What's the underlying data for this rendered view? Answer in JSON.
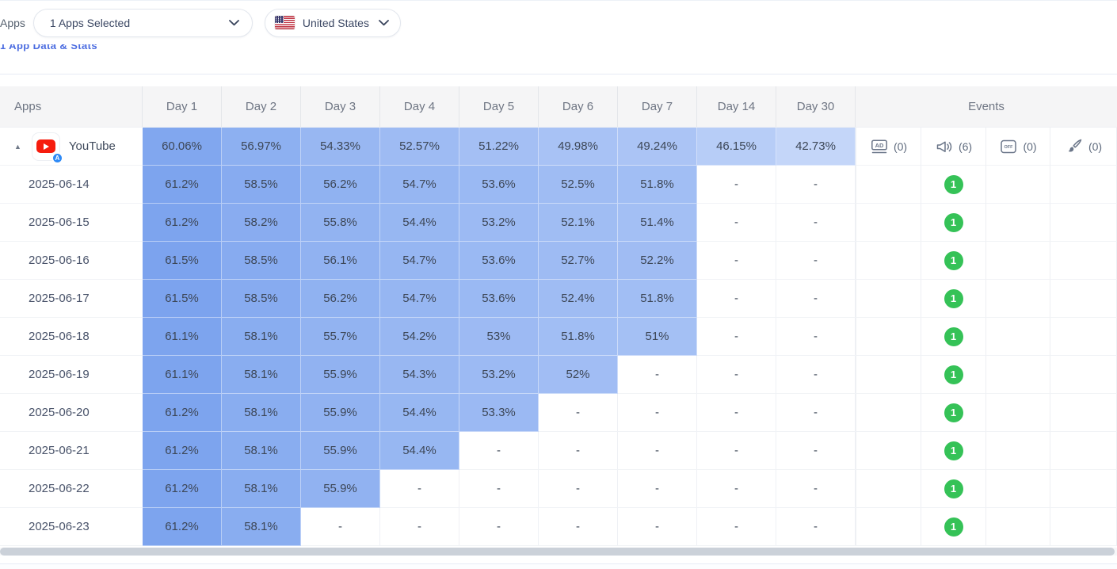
{
  "topbar": {
    "apps_label": "Apps",
    "apps_selected": "1 Apps Selected",
    "country": "United States",
    "flag": "us-flag"
  },
  "clipped_heading": "1 App Data & Stats",
  "table": {
    "app_column_header": "Apps",
    "day_headers": [
      "Day 1",
      "Day 2",
      "Day 3",
      "Day 4",
      "Day 5",
      "Day 6",
      "Day 7",
      "Day 14",
      "Day 30"
    ],
    "events_header": "Events",
    "app_row": {
      "name": "YouTube",
      "app_icon": "youtube-app-icon",
      "store_badge": "appstore-badge-icon",
      "values": [
        "60.06%",
        "56.97%",
        "54.33%",
        "52.57%",
        "51.22%",
        "49.98%",
        "49.24%",
        "46.15%",
        "42.73%"
      ],
      "events": [
        {
          "icon": "ad-banner-icon",
          "count": "(0)"
        },
        {
          "icon": "megaphone-icon",
          "count": "(6)"
        },
        {
          "icon": "offer-tag-icon",
          "count": "(0)"
        },
        {
          "icon": "paintbrush-icon",
          "count": "(0)"
        }
      ]
    },
    "rows": [
      {
        "date": "2025-06-14",
        "values": [
          "61.2%",
          "58.5%",
          "56.2%",
          "54.7%",
          "53.6%",
          "52.5%",
          "51.8%",
          "-",
          "-"
        ],
        "event_badge": "1"
      },
      {
        "date": "2025-06-15",
        "values": [
          "61.2%",
          "58.2%",
          "55.8%",
          "54.4%",
          "53.2%",
          "52.1%",
          "51.4%",
          "-",
          "-"
        ],
        "event_badge": "1"
      },
      {
        "date": "2025-06-16",
        "values": [
          "61.5%",
          "58.5%",
          "56.1%",
          "54.7%",
          "53.6%",
          "52.7%",
          "52.2%",
          "-",
          "-"
        ],
        "event_badge": "1"
      },
      {
        "date": "2025-06-17",
        "values": [
          "61.5%",
          "58.5%",
          "56.2%",
          "54.7%",
          "53.6%",
          "52.4%",
          "51.8%",
          "-",
          "-"
        ],
        "event_badge": "1"
      },
      {
        "date": "2025-06-18",
        "values": [
          "61.1%",
          "58.1%",
          "55.7%",
          "54.2%",
          "53%",
          "51.8%",
          "51%",
          "-",
          "-"
        ],
        "event_badge": "1"
      },
      {
        "date": "2025-06-19",
        "values": [
          "61.1%",
          "58.1%",
          "55.9%",
          "54.3%",
          "53.2%",
          "52%",
          "-",
          "-",
          "-"
        ],
        "event_badge": "1"
      },
      {
        "date": "2025-06-20",
        "values": [
          "61.2%",
          "58.1%",
          "55.9%",
          "54.4%",
          "53.3%",
          "-",
          "-",
          "-",
          "-"
        ],
        "event_badge": "1"
      },
      {
        "date": "2025-06-21",
        "values": [
          "61.2%",
          "58.1%",
          "55.9%",
          "54.4%",
          "-",
          "-",
          "-",
          "-",
          "-"
        ],
        "event_badge": "1"
      },
      {
        "date": "2025-06-22",
        "values": [
          "61.2%",
          "58.1%",
          "55.9%",
          "-",
          "-",
          "-",
          "-",
          "-",
          "-"
        ],
        "event_badge": "1"
      },
      {
        "date": "2025-06-23",
        "values": [
          "61.2%",
          "58.1%",
          "-",
          "-",
          "-",
          "-",
          "-",
          "-",
          "-"
        ],
        "event_badge": "1"
      }
    ]
  },
  "colors": {
    "heat_low": "#c7d8f9",
    "heat_high": "#7aa2ee",
    "badge_green": "#35c257",
    "heading_blue": "#4a6be0",
    "youtube_red": "#f61c0d",
    "appstore_blue": "#2e8af6"
  }
}
